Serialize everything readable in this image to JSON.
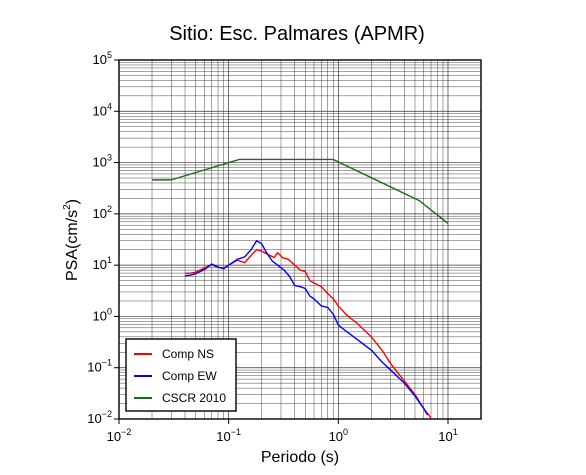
{
  "chart_data": {
    "type": "line",
    "title": "Sitio: Esc. Palmares (APMR)",
    "xlabel": "Periodo (s)",
    "ylabel_main": "PSA(cm/s",
    "ylabel_sup": "2",
    "ylabel_close": ")",
    "x_scale": "log",
    "y_scale": "log",
    "xlim": [
      0.01,
      20
    ],
    "ylim": [
      0.01,
      100000
    ],
    "grid": true,
    "legend_position": "bottom-left",
    "x_ticks": [
      {
        "value": 0.01,
        "base": "10",
        "exp": "−2"
      },
      {
        "value": 0.1,
        "base": "10",
        "exp": "−1"
      },
      {
        "value": 1,
        "base": "10",
        "exp": "0"
      },
      {
        "value": 10,
        "base": "10",
        "exp": "1"
      }
    ],
    "y_ticks": [
      {
        "value": 0.01,
        "base": "10",
        "exp": "−2"
      },
      {
        "value": 0.1,
        "base": "10",
        "exp": "−1"
      },
      {
        "value": 1,
        "base": "10",
        "exp": "0"
      },
      {
        "value": 10,
        "base": "10",
        "exp": "1"
      },
      {
        "value": 100,
        "base": "10",
        "exp": "2"
      },
      {
        "value": 1000,
        "base": "10",
        "exp": "3"
      },
      {
        "value": 10000,
        "base": "10",
        "exp": "4"
      },
      {
        "value": 100000,
        "base": "10",
        "exp": "5"
      }
    ],
    "series": [
      {
        "name": "Comp NS",
        "color": "#ff0000",
        "points": [
          [
            0.04,
            6.9
          ],
          [
            0.045,
            7.0
          ],
          [
            0.05,
            7.3
          ],
          [
            0.06,
            8.8
          ],
          [
            0.07,
            10.2
          ],
          [
            0.08,
            9.0
          ],
          [
            0.09,
            8.8
          ],
          [
            0.1,
            10.0
          ],
          [
            0.12,
            12.5
          ],
          [
            0.14,
            11.2
          ],
          [
            0.16,
            15.5
          ],
          [
            0.18,
            20.0
          ],
          [
            0.2,
            18.8
          ],
          [
            0.23,
            16.0
          ],
          [
            0.26,
            14.0
          ],
          [
            0.28,
            17.5
          ],
          [
            0.31,
            14.0
          ],
          [
            0.35,
            13.0
          ],
          [
            0.4,
            10.0
          ],
          [
            0.45,
            8.0
          ],
          [
            0.5,
            7.5
          ],
          [
            0.55,
            5.0
          ],
          [
            0.6,
            4.5
          ],
          [
            0.7,
            3.8
          ],
          [
            0.8,
            2.8
          ],
          [
            0.9,
            2.2
          ],
          [
            1.0,
            1.6
          ],
          [
            1.2,
            1.05
          ],
          [
            1.5,
            0.72
          ],
          [
            2.0,
            0.4
          ],
          [
            2.5,
            0.22
          ],
          [
            3.0,
            0.12
          ],
          [
            4.0,
            0.055
          ],
          [
            5.0,
            0.03
          ],
          [
            6.0,
            0.016
          ],
          [
            7.0,
            0.0105
          ]
        ]
      },
      {
        "name": "Comp EW",
        "color": "#0000ff",
        "points": [
          [
            0.04,
            6.2
          ],
          [
            0.045,
            6.4
          ],
          [
            0.05,
            6.8
          ],
          [
            0.06,
            8.2
          ],
          [
            0.07,
            10.5
          ],
          [
            0.08,
            9.2
          ],
          [
            0.09,
            8.5
          ],
          [
            0.1,
            10.0
          ],
          [
            0.12,
            13.0
          ],
          [
            0.14,
            14.5
          ],
          [
            0.16,
            20.0
          ],
          [
            0.18,
            30.0
          ],
          [
            0.2,
            26.0
          ],
          [
            0.22,
            18.0
          ],
          [
            0.25,
            12.0
          ],
          [
            0.28,
            10.0
          ],
          [
            0.32,
            8.0
          ],
          [
            0.36,
            6.0
          ],
          [
            0.4,
            4.0
          ],
          [
            0.45,
            3.8
          ],
          [
            0.5,
            3.5
          ],
          [
            0.55,
            2.5
          ],
          [
            0.6,
            2.2
          ],
          [
            0.7,
            1.6
          ],
          [
            0.8,
            1.5
          ],
          [
            0.9,
            1.1
          ],
          [
            1.0,
            0.68
          ],
          [
            1.2,
            0.5
          ],
          [
            1.5,
            0.35
          ],
          [
            2.0,
            0.22
          ],
          [
            2.5,
            0.13
          ],
          [
            3.0,
            0.09
          ],
          [
            4.0,
            0.05
          ],
          [
            5.0,
            0.028
          ],
          [
            6.0,
            0.016
          ],
          [
            6.5,
            0.012
          ]
        ]
      },
      {
        "name": "CSCR 2010",
        "color": "#1e6b1e",
        "points": [
          [
            0.02,
            460
          ],
          [
            0.03,
            460
          ],
          [
            0.125,
            1150
          ],
          [
            0.9,
            1150
          ],
          [
            5.5,
            180
          ],
          [
            10.0,
            65
          ]
        ]
      }
    ]
  }
}
